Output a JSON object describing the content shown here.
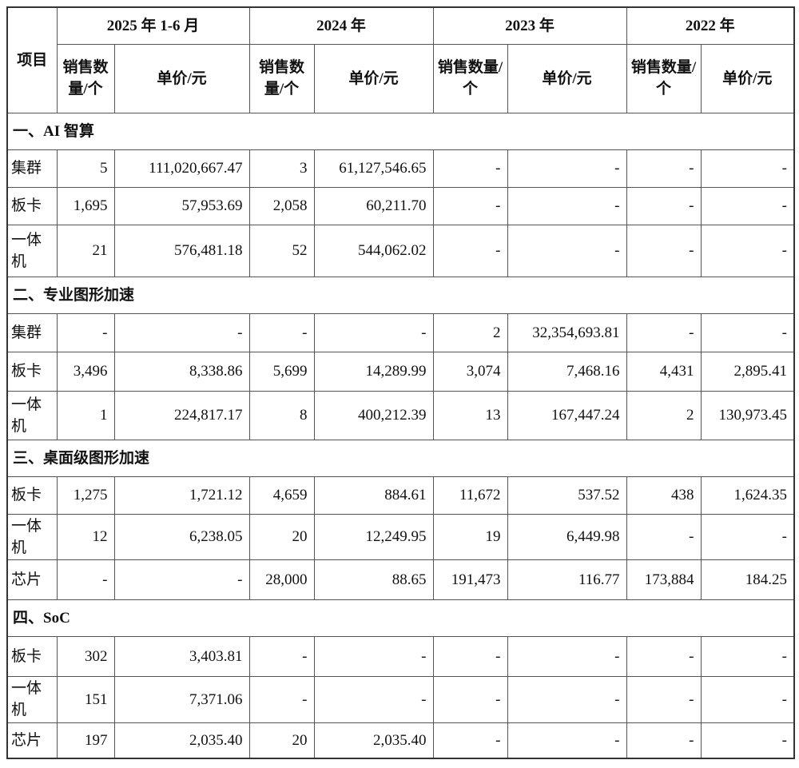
{
  "header": {
    "item_label": "项目",
    "periods": [
      "2025 年 1-6 月",
      "2024 年",
      "2023 年",
      "2022 年"
    ],
    "qty_label_narrow": "销售数量/个",
    "qty_label_wide": "销售数量/个",
    "price_label": "单价/元"
  },
  "sections": [
    {
      "title": "一、AI 智算",
      "rows": [
        {
          "name": "集群",
          "values": [
            "5",
            "111,020,667.47",
            "3",
            "61,127,546.65",
            "-",
            "-",
            "-",
            "-"
          ]
        },
        {
          "name": "板卡",
          "values": [
            "1,695",
            "57,953.69",
            "2,058",
            "60,211.70",
            "-",
            "-",
            "-",
            "-"
          ]
        },
        {
          "name": "一体机",
          "values": [
            "21",
            "576,481.18",
            "52",
            "544,062.02",
            "-",
            "-",
            "-",
            "-"
          ]
        }
      ]
    },
    {
      "title": "二、专业图形加速",
      "rows": [
        {
          "name": "集群",
          "values": [
            "-",
            "-",
            "-",
            "-",
            "2",
            "32,354,693.81",
            "-",
            "-"
          ]
        },
        {
          "name": "板卡",
          "values": [
            "3,496",
            "8,338.86",
            "5,699",
            "14,289.99",
            "3,074",
            "7,468.16",
            "4,431",
            "2,895.41"
          ]
        },
        {
          "name": "一体机",
          "values": [
            "1",
            "224,817.17",
            "8",
            "400,212.39",
            "13",
            "167,447.24",
            "2",
            "130,973.45"
          ]
        }
      ]
    },
    {
      "title": "三、桌面级图形加速",
      "rows": [
        {
          "name": "板卡",
          "values": [
            "1,275",
            "1,721.12",
            "4,659",
            "884.61",
            "11,672",
            "537.52",
            "438",
            "1,624.35"
          ]
        },
        {
          "name": "一体机",
          "values": [
            "12",
            "6,238.05",
            "20",
            "12,249.95",
            "19",
            "6,449.98",
            "-",
            "-"
          ]
        },
        {
          "name": "芯片",
          "values": [
            "-",
            "-",
            "28,000",
            "88.65",
            "191,473",
            "116.77",
            "173,884",
            "184.25"
          ]
        }
      ]
    },
    {
      "title": "四、SoC",
      "rows": [
        {
          "name": "板卡",
          "values": [
            "302",
            "3,403.81",
            "-",
            "-",
            "-",
            "-",
            "-",
            "-"
          ]
        },
        {
          "name": "一体机",
          "values": [
            "151",
            "7,371.06",
            "-",
            "-",
            "-",
            "-",
            "-",
            "-"
          ]
        },
        {
          "name": "芯片",
          "values": [
            "197",
            "2,035.40",
            "20",
            "2,035.40",
            "-",
            "-",
            "-",
            "-"
          ]
        }
      ]
    }
  ]
}
